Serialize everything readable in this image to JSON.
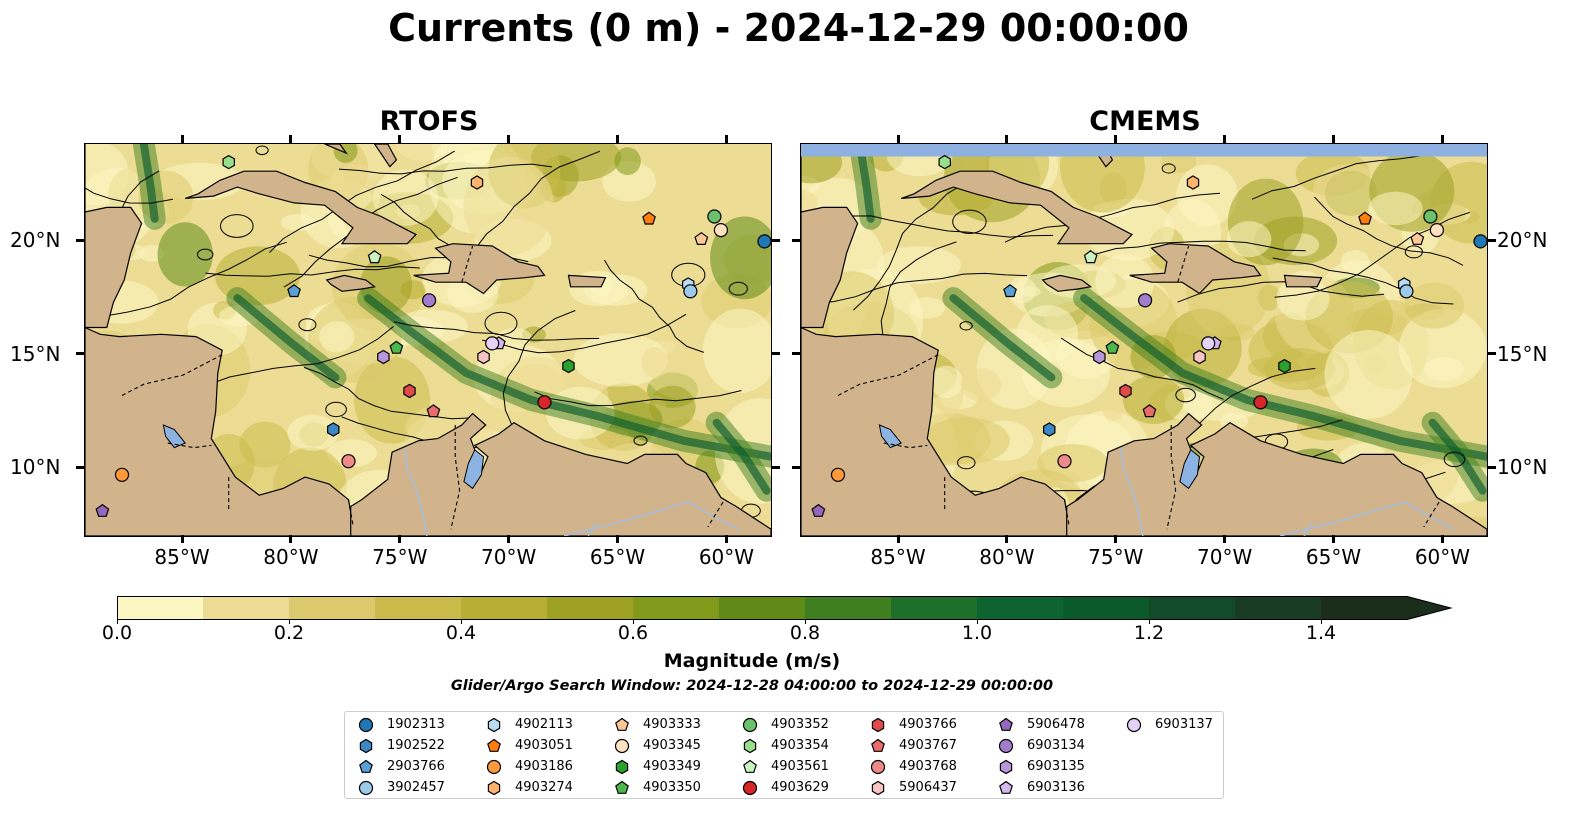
{
  "title": "Currents (0 m) - 2024-12-29 00:00:00",
  "panels": [
    {
      "title": "RTOFS"
    },
    {
      "title": "CMEMS"
    }
  ],
  "axes": {
    "lon_ticks": [
      "85°W",
      "80°W",
      "75°W",
      "70°W",
      "65°W",
      "60°W"
    ],
    "lat_ticks": [
      "20°N",
      "15°N",
      "10°N"
    ],
    "lon_range": [
      -89.5,
      -58.0
    ],
    "lat_range": [
      7.0,
      24.3
    ]
  },
  "colorbar": {
    "label": "Magnitude (m/s)",
    "ticks": [
      "0.0",
      "0.2",
      "0.4",
      "0.6",
      "0.8",
      "1.0",
      "1.2",
      "1.4"
    ],
    "min": 0.0,
    "max": 1.5,
    "extend": "max",
    "colors": [
      "#fbf6c2",
      "#eddd94",
      "#ddca6e",
      "#cbbb4c",
      "#b8ae35",
      "#9fa124",
      "#82991a",
      "#5f8a18",
      "#3f7f1f",
      "#1e6f2a",
      "#0e642f",
      "#0b5a2e",
      "#124a2a",
      "#183c24",
      "#1b2e1c"
    ]
  },
  "search_window": "Glider/Argo Search Window: 2024-12-28 04:00:00 to 2024-12-29 00:00:00",
  "colors": {
    "land": "#d2b48c",
    "water_body": "#8db3e2",
    "river": "#a6bddb"
  },
  "legend": [
    {
      "id": "1902313",
      "marker": "circle",
      "color": "#1f77b4"
    },
    {
      "id": "1902522",
      "marker": "hexagon",
      "color": "#3b88c4"
    },
    {
      "id": "2903766",
      "marker": "pentagon",
      "color": "#5a9fd6"
    },
    {
      "id": "3902457",
      "marker": "circle",
      "color": "#9ecae9"
    },
    {
      "id": "4902113",
      "marker": "hexagon",
      "color": "#b9dcf2"
    },
    {
      "id": "4903051",
      "marker": "pentagon",
      "color": "#ff7f0e"
    },
    {
      "id": "4903186",
      "marker": "circle",
      "color": "#ff9a3c"
    },
    {
      "id": "4903274",
      "marker": "hexagon",
      "color": "#ffb26b"
    },
    {
      "id": "4903333",
      "marker": "pentagon",
      "color": "#ffc896"
    },
    {
      "id": "4903345",
      "marker": "circle",
      "color": "#ffe0bf"
    },
    {
      "id": "4903349",
      "marker": "hexagon",
      "color": "#2ca02c"
    },
    {
      "id": "4903350",
      "marker": "pentagon",
      "color": "#4cb84c"
    },
    {
      "id": "4903352",
      "marker": "circle",
      "color": "#6cc26c"
    },
    {
      "id": "4903354",
      "marker": "hexagon",
      "color": "#98df8a"
    },
    {
      "id": "4903561",
      "marker": "pentagon",
      "color": "#c9f2c0"
    },
    {
      "id": "4903629",
      "marker": "circle",
      "color": "#d62728"
    },
    {
      "id": "4903766",
      "marker": "hexagon",
      "color": "#e04a4b"
    },
    {
      "id": "4903767",
      "marker": "pentagon",
      "color": "#ea6b6c"
    },
    {
      "id": "4903768",
      "marker": "circle",
      "color": "#f08a8a"
    },
    {
      "id": "5906437",
      "marker": "hexagon",
      "color": "#f7c4c4"
    },
    {
      "id": "5906478",
      "marker": "pentagon",
      "color": "#9467bd"
    },
    {
      "id": "6903134",
      "marker": "circle",
      "color": "#a37ccc"
    },
    {
      "id": "6903135",
      "marker": "hexagon",
      "color": "#b896dc"
    },
    {
      "id": "6903136",
      "marker": "pentagon",
      "color": "#d2b8ec"
    },
    {
      "id": "6903137",
      "marker": "circle",
      "color": "#e6d2f7"
    }
  ],
  "platforms": [
    {
      "id": "4903354",
      "lon": -82.9,
      "lat": 23.5
    },
    {
      "id": "4903274",
      "lon": -71.5,
      "lat": 22.6
    },
    {
      "id": "4903051",
      "lon": -63.6,
      "lat": 21.0
    },
    {
      "id": "4903352",
      "lon": -60.6,
      "lat": 21.1
    },
    {
      "id": "4903345",
      "lon": -60.3,
      "lat": 20.5
    },
    {
      "id": "4903333",
      "lon": -61.2,
      "lat": 20.1
    },
    {
      "id": "1902313",
      "lon": -58.3,
      "lat": 20.0
    },
    {
      "id": "4903561",
      "lon": -76.2,
      "lat": 19.3
    },
    {
      "id": "2903766",
      "lon": -79.9,
      "lat": 17.8
    },
    {
      "id": "4902113",
      "lon": -61.8,
      "lat": 18.1
    },
    {
      "id": "3902457",
      "lon": -61.7,
      "lat": 17.8
    },
    {
      "id": "6903134",
      "lon": -73.7,
      "lat": 17.4
    },
    {
      "id": "6903136",
      "lon": -70.5,
      "lat": 15.5
    },
    {
      "id": "6903137",
      "lon": -70.8,
      "lat": 15.5
    },
    {
      "id": "5906437",
      "lon": -71.2,
      "lat": 14.9
    },
    {
      "id": "4903350",
      "lon": -75.2,
      "lat": 15.3
    },
    {
      "id": "6903135",
      "lon": -75.8,
      "lat": 14.9
    },
    {
      "id": "4903349",
      "lon": -67.3,
      "lat": 14.5
    },
    {
      "id": "4903766",
      "lon": -74.6,
      "lat": 13.4
    },
    {
      "id": "4903767",
      "lon": -73.5,
      "lat": 12.5
    },
    {
      "id": "4903629",
      "lon": -68.4,
      "lat": 12.9
    },
    {
      "id": "1902522",
      "lon": -78.1,
      "lat": 11.7
    },
    {
      "id": "4903768",
      "lon": -77.4,
      "lat": 10.3
    },
    {
      "id": "4903186",
      "lon": -87.8,
      "lat": 9.7
    },
    {
      "id": "5906478",
      "lon": -88.7,
      "lat": 8.1
    }
  ]
}
